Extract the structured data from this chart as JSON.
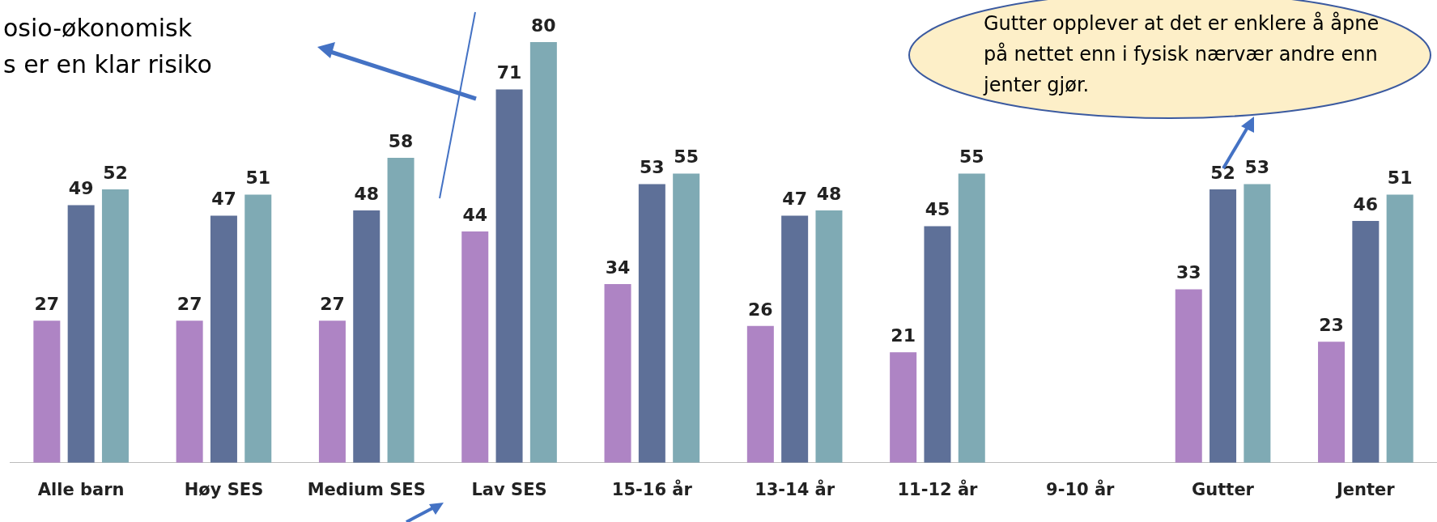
{
  "chart_data": {
    "type": "bar",
    "categories": [
      "Alle barn",
      "Høy SES",
      "Medium SES",
      "Lav SES",
      "15-16 år",
      "13-14 år",
      "11-12 år",
      "9-10 år",
      "Gutter",
      "Jenter"
    ],
    "series": [
      {
        "color": "#ae84c4",
        "values": [
          27,
          27,
          27,
          44,
          34,
          26,
          21,
          null,
          33,
          23
        ]
      },
      {
        "color": "#5e7098",
        "values": [
          49,
          47,
          48,
          71,
          53,
          47,
          45,
          null,
          52,
          46
        ]
      },
      {
        "color": "#7faab4",
        "values": [
          52,
          51,
          58,
          80,
          55,
          48,
          55,
          null,
          53,
          51
        ]
      }
    ],
    "data_labels": true,
    "legend": false,
    "grid": false,
    "annotations": [
      "osio-økonomisk\ns er en klar risiko",
      "Gutter opplever at det er enklere å åpne på nettet enn i fysisk nærvær andre enn jenter gjør."
    ]
  }
}
